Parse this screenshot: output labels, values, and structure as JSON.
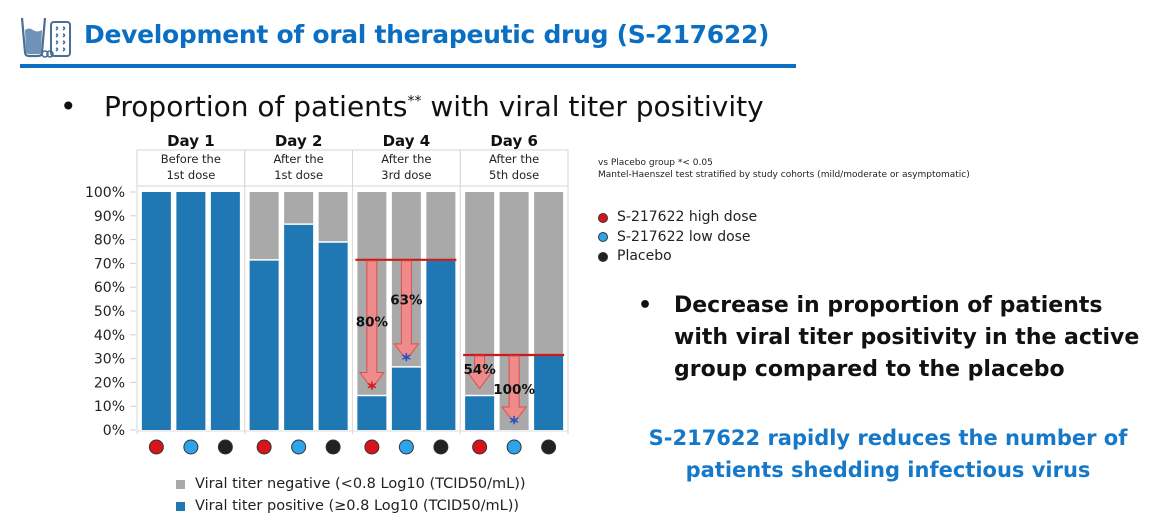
{
  "header": {
    "title": "Development of oral therapeutic drug (S-217622)",
    "icon": "drug-glass-and-pills-icon",
    "brand_color": "#0a6fc2"
  },
  "slide": {
    "bullet_char": "•",
    "main_bullet_text": "Proportion of patients",
    "main_bullet_sup": "**",
    "main_bullet_rest": " with viral titer positivity",
    "note_line1": "vs Placebo group *< 0.05",
    "note_line2": "Mantel-Haenszel test stratified by study cohorts (mild/moderate or asymptomatic)",
    "conclusion": "Decrease in proportion of patients with viral titer positivity in the active group compared to the placebo",
    "tagline_line1": "S-217622 rapidly reduces the number of",
    "tagline_line2": "patients shedding infectious virus"
  },
  "chart_data": {
    "type": "bar",
    "stacked": true,
    "title": "Proportion of patients with viral titer positivity",
    "ylabel": "",
    "ylim": [
      0,
      100
    ],
    "yticks": [
      "0%",
      "10%",
      "20%",
      "30%",
      "40%",
      "50%",
      "60%",
      "70%",
      "80%",
      "90%",
      "100%"
    ],
    "groups": [
      {
        "day": "Day 1",
        "sub1": "Before the",
        "sub2": "1st dose"
      },
      {
        "day": "Day 2",
        "sub1": "After the",
        "sub2": "1st dose"
      },
      {
        "day": "Day 4",
        "sub1": "After the",
        "sub2": "3rd dose"
      },
      {
        "day": "Day 6",
        "sub1": "After the",
        "sub2": "5th dose"
      }
    ],
    "arms": [
      {
        "name": "S-217622 high dose",
        "color": "#d7141c"
      },
      {
        "name": "S-217622 low dose",
        "color": "#2ea3ea"
      },
      {
        "name": "Placebo",
        "color": "#222222"
      }
    ],
    "series": [
      {
        "name": "Viral titer negative (<0.8 Log10 (TCID50/mL))",
        "color": "#a9a9a9",
        "values": [
          [
            0,
            0,
            0
          ],
          [
            28.5,
            13.5,
            21
          ],
          [
            85.5,
            73.5,
            28.5
          ],
          [
            85.5,
            100,
            68.5
          ]
        ]
      },
      {
        "name": "Viral titer positive (≥0.8 Log10 (TCID50/mL))",
        "color": "#1f78b4",
        "values": [
          [
            100,
            100,
            100
          ],
          [
            71.5,
            86.5,
            79
          ],
          [
            14.5,
            26.5,
            71.5
          ],
          [
            14.5,
            0,
            31.5
          ]
        ]
      }
    ],
    "annotations": [
      {
        "group": 2,
        "arm": 0,
        "label": "80%",
        "significant": true,
        "star_color": "#d7141c"
      },
      {
        "group": 2,
        "arm": 1,
        "label": "63%",
        "significant": true,
        "star_color": "#1a56c8"
      },
      {
        "group": 3,
        "arm": 0,
        "label": "54%",
        "significant": false
      },
      {
        "group": 3,
        "arm": 1,
        "label": "100%",
        "significant": true,
        "star_color": "#1a56c8"
      }
    ],
    "star_symbol": "*",
    "reference_line_color": "#cc1a1a",
    "arrow_color": "#f48a8a"
  }
}
